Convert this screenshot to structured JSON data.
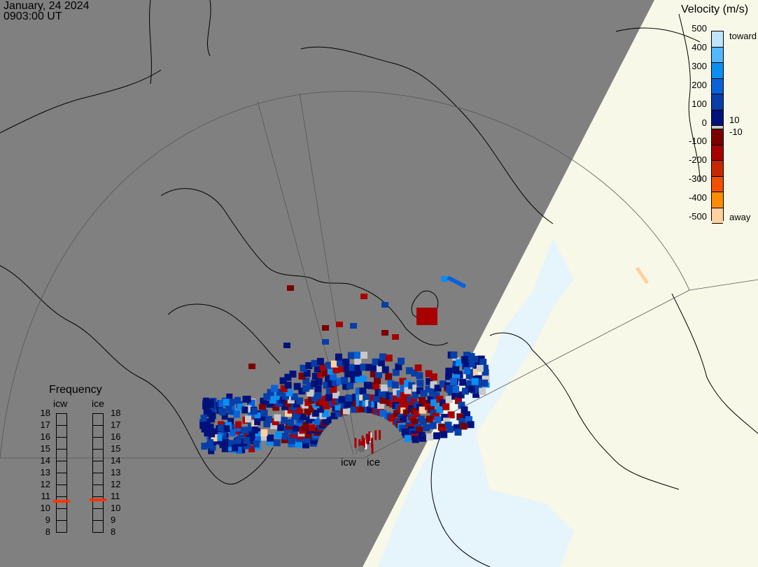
{
  "header": {
    "date": "January, 24 2024",
    "time": "0903:00 UT"
  },
  "legend": {
    "title": "Velocity (m/s)",
    "ticks": [
      "500",
      "400",
      "300",
      "200",
      "100",
      "0",
      "-100",
      "-200",
      "-300",
      "-400",
      "-500"
    ],
    "inner_labels": [
      "10",
      "-10"
    ],
    "end_labels": {
      "top": "toward",
      "bottom": "away"
    },
    "colors": {
      "toward": [
        "#bfe4ff",
        "#55b8ff",
        "#0a8ef0",
        "#0a62d8",
        "#073ea8",
        "#00127a"
      ],
      "zero": "#c8c8c8",
      "away": [
        "#7a0000",
        "#a80000",
        "#c82800",
        "#f05000",
        "#ff8c00",
        "#ffd0a0"
      ]
    }
  },
  "frequency": {
    "title": "Frequency",
    "radars": [
      {
        "name": "icw",
        "value_mhz": 10.6
      },
      {
        "name": "ice",
        "value_mhz": 10.7
      }
    ],
    "scale": [
      "18",
      "17",
      "16",
      "15",
      "14",
      "13",
      "12",
      "11",
      "10",
      "9",
      "8"
    ],
    "marker_color": "#ff3300"
  },
  "radar_labels": [
    "icw",
    "ice"
  ],
  "map_colors": {
    "night": "#808080",
    "day_land": "#f8f8e8",
    "day_ocean": "#e6f4fc",
    "coast": "#000000",
    "grid": "#555555"
  }
}
